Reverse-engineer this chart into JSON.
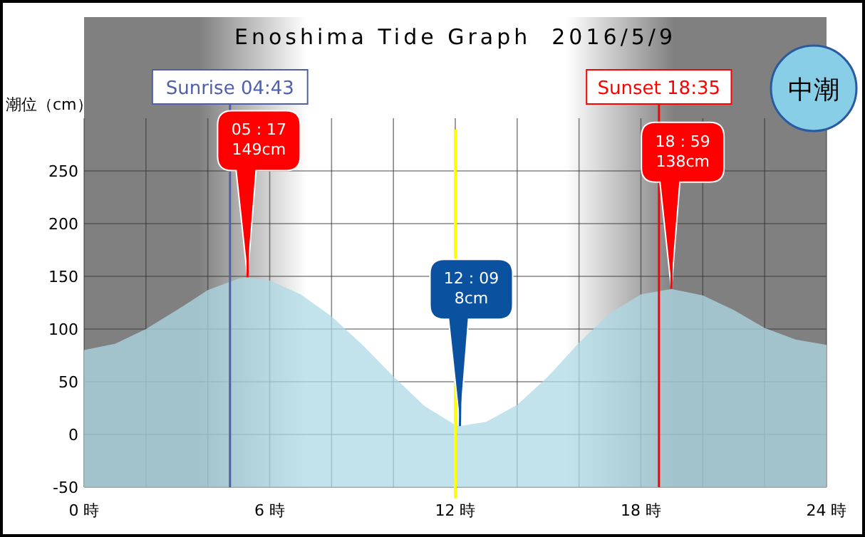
{
  "chart_data": {
    "type": "area",
    "title": "Enoshima Tide Graph  2016/5/9",
    "ylabel": "潮位（cm）",
    "x": [
      "2016-05-09T00:00",
      "2016-05-09T01:00",
      "2016-05-09T02:00",
      "2016-05-09T03:00",
      "2016-05-09T04:00",
      "2016-05-09T05:00",
      "2016-05-09T05:17",
      "2016-05-09T06:00",
      "2016-05-09T07:00",
      "2016-05-09T08:00",
      "2016-05-09T09:00",
      "2016-05-09T10:00",
      "2016-05-09T11:00",
      "2016-05-09T12:00",
      "2016-05-09T12:09",
      "2016-05-09T13:00",
      "2016-05-09T14:00",
      "2016-05-09T15:00",
      "2016-05-09T16:00",
      "2016-05-09T17:00",
      "2016-05-09T18:00",
      "2016-05-09T18:59",
      "2016-05-09T20:00",
      "2016-05-09T21:00",
      "2016-05-09T22:00",
      "2016-05-09T23:00",
      "2016-05-10T00:00"
    ],
    "series": [
      {
        "color": "#add8e6",
        "values": [
          80,
          86,
          100,
          118,
          137,
          148,
          149,
          146,
          133,
          112,
          85,
          55,
          27,
          9,
          8,
          12,
          28,
          55,
          87,
          115,
          133,
          138,
          132,
          118,
          101,
          90,
          85
        ]
      }
    ],
    "xlim": [
      "2016-05-09T00:00",
      "2016-05-10T00:00"
    ],
    "ylim": [
      -50,
      300
    ],
    "xticks": [
      {
        "value": "2016-05-09T00:00",
        "label": "0 時"
      },
      {
        "value": "2016-05-09T02:00",
        "label": null
      },
      {
        "value": "2016-05-09T04:00",
        "label": null
      },
      {
        "value": "2016-05-09T06:00",
        "label": "6 時"
      },
      {
        "value": "2016-05-09T08:00",
        "label": null
      },
      {
        "value": "2016-05-09T10:00",
        "label": null
      },
      {
        "value": "2016-05-09T12:00",
        "label": "12 時"
      },
      {
        "value": "2016-05-09T14:00",
        "label": null
      },
      {
        "value": "2016-05-09T16:00",
        "label": null
      },
      {
        "value": "2016-05-09T18:00",
        "label": "18 時"
      },
      {
        "value": "2016-05-09T20:00",
        "label": null
      },
      {
        "value": "2016-05-09T22:00",
        "label": null
      },
      {
        "value": "2016-05-10T00:00",
        "label": "24 時"
      }
    ],
    "yticks": [
      -50,
      0,
      50,
      100,
      150,
      200,
      250
    ],
    "grid": true,
    "ref_lines": [
      {
        "axis": "x",
        "value": "2016-05-09T04:43",
        "label": "Sunrise 04:43",
        "color": "#5060a8"
      },
      {
        "axis": "x",
        "value": "2016-05-09T12:00",
        "color": "#ffff00"
      },
      {
        "axis": "x",
        "value": "2016-05-09T18:35",
        "label": "Sunset 18:35",
        "color": "#ff0000"
      }
    ],
    "annotations": [
      {
        "text": "05 : 17\n149cm",
        "x": "2016-05-09T05:17",
        "y": 149
      },
      {
        "text": "12 : 09\n8cm",
        "x": "2016-05-09T12:09",
        "y": 8
      },
      {
        "text": "18 : 59\n138cm",
        "x": "2016-05-09T18:59",
        "y": 138
      },
      "中潮"
    ]
  }
}
